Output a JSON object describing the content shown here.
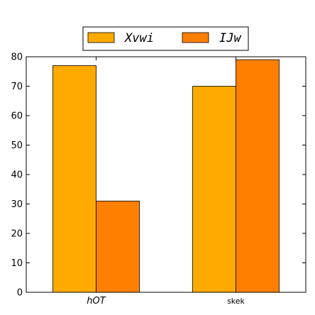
{
  "chart_data": {
    "type": "bar",
    "categories": [
      "hOT",
      "skek"
    ],
    "series": [
      {
        "name": "Xvwi",
        "values": [
          77,
          70
        ],
        "color": "#ffaa00"
      },
      {
        "name": "IJw",
        "values": [
          31,
          79
        ],
        "color": "#ff7f00"
      }
    ],
    "title": "",
    "xlabel": "",
    "ylabel": "",
    "ylim": [
      0,
      80
    ],
    "yticks": [
      0,
      10,
      20,
      30,
      40,
      50,
      60,
      70,
      80
    ],
    "grid": false,
    "legend_position": "top-center"
  }
}
